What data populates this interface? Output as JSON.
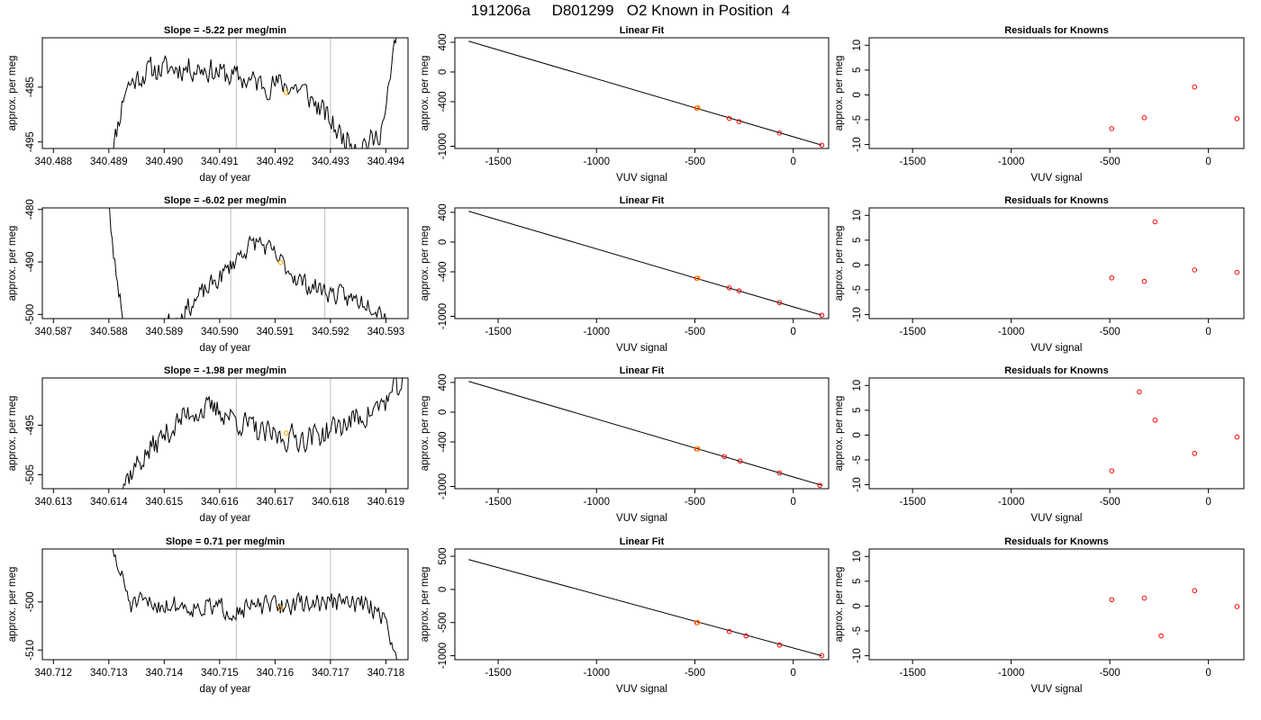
{
  "title": "191206a     D801299   O2 Known in Position  4",
  "colors": {
    "trace": "#000000",
    "known_point": "#FFA500",
    "residual": "#FF0000",
    "vline": "#BEBEBE",
    "fit_line": "#000000"
  },
  "chart_data": [
    {
      "type": "line",
      "panel": "timeseries",
      "row": 1,
      "title": "Slope =  -5.22  per meg/min",
      "xlabel": "day of year",
      "ylabel": "approx. per meg",
      "xlim": [
        340.4878,
        340.4944
      ],
      "ylim": [
        -496.2,
        -476.0
      ],
      "xticks": [
        "340.488",
        "340.489",
        "340.490",
        "340.491",
        "340.492",
        "340.493",
        "340.494"
      ],
      "xtick_values": [
        340.488,
        340.489,
        340.49,
        340.491,
        340.492,
        340.493,
        340.494
      ],
      "yticks": [
        "-485",
        "-495"
      ],
      "ytick_values": [
        -485,
        -495
      ],
      "vlines": [
        340.4913,
        340.493
      ],
      "known_point": {
        "x": 340.4922,
        "y": -486.0
      },
      "trace": {
        "seed": 11,
        "plateau": -482.0,
        "noise": 1.3,
        "shape": [
          [
            340.489,
            -500
          ],
          [
            340.4893,
            -485
          ],
          [
            340.4897,
            -482
          ],
          [
            340.4902,
            -481.5
          ],
          [
            340.4907,
            -481.5
          ],
          [
            340.4912,
            -483
          ],
          [
            340.4918,
            -484.5
          ],
          [
            340.4922,
            -484.5
          ],
          [
            340.4925,
            -485.5
          ],
          [
            340.4929,
            -490
          ],
          [
            340.4932,
            -494
          ],
          [
            340.4935,
            -495
          ],
          [
            340.4938,
            -495
          ],
          [
            340.494,
            -490
          ],
          [
            340.4942,
            -474
          ]
        ]
      }
    },
    {
      "type": "scatter",
      "panel": "linear_fit",
      "row": 1,
      "title": "Linear Fit",
      "xlabel": "VUV signal",
      "ylabel": "approx. per meg",
      "xlim": [
        -1720,
        180
      ],
      "ylim": [
        -1030,
        460
      ],
      "xticks": [
        "-1500",
        "-1000",
        "-500",
        "0"
      ],
      "xtick_values": [
        -1500,
        -1000,
        -500,
        0
      ],
      "yticks": [
        "400",
        "0",
        "-400",
        "-1000"
      ],
      "ytick_values": [
        400,
        0,
        -400,
        -1000
      ],
      "fit_line": {
        "x": [
          -1650,
          145
        ],
        "y": [
          415,
          -985
        ]
      },
      "points": {
        "x": [
          -490,
          -325,
          -275,
          -70,
          145
        ],
        "y": [
          -486,
          -625,
          -668,
          -822,
          -985
        ]
      },
      "known_point": {
        "x": -485,
        "y": -484
      }
    },
    {
      "type": "scatter",
      "panel": "residuals",
      "row": 1,
      "title": "Residuals for Knowns",
      "xlabel": "VUV signal",
      "ylabel": "approx. per meg",
      "xlim": [
        -1720,
        180
      ],
      "ylim": [
        -10.8,
        11.5
      ],
      "xticks": [
        "-1500",
        "-1000",
        "-500",
        "0"
      ],
      "xtick_values": [
        -1500,
        -1000,
        -500,
        0
      ],
      "yticks": [
        "10",
        "5",
        "0",
        "-5",
        "-10"
      ],
      "ytick_values": [
        10,
        5,
        0,
        -5,
        -10
      ],
      "points": {
        "x": [
          -490,
          -325,
          -70,
          145
        ],
        "y": [
          -6.8,
          -4.6,
          1.6,
          -4.8
        ]
      }
    },
    {
      "type": "line",
      "panel": "timeseries",
      "row": 2,
      "title": "Slope =  -6.02  per meg/min",
      "xlabel": "day of year",
      "ylabel": "approx. per meg",
      "xlim": [
        340.5868,
        340.5934
      ],
      "ylim": [
        -500.8,
        -479.7
      ],
      "xticks": [
        "340.587",
        "340.588",
        "340.589",
        "340.590",
        "340.591",
        "340.592",
        "340.593"
      ],
      "xtick_values": [
        340.587,
        340.588,
        340.589,
        340.59,
        340.591,
        340.592,
        340.593
      ],
      "yticks": [
        "-480",
        "-490",
        "-500"
      ],
      "ytick_values": [
        -480,
        -490,
        -500
      ],
      "vlines": [
        340.5902,
        340.5919
      ],
      "known_point": {
        "x": 340.5911,
        "y": -490.1
      },
      "trace": {
        "seed": 23,
        "plateau": -488.0,
        "noise": 1.1,
        "shape": [
          [
            340.5879,
            -470
          ],
          [
            340.5881,
            -490
          ],
          [
            340.5883,
            -503
          ],
          [
            340.5887,
            -504
          ],
          [
            340.5893,
            -500
          ],
          [
            340.5897,
            -496
          ],
          [
            340.5901,
            -492
          ],
          [
            340.5904,
            -488
          ],
          [
            340.5907,
            -486
          ],
          [
            340.5911,
            -490
          ],
          [
            340.5915,
            -494
          ],
          [
            340.5919,
            -495.5
          ],
          [
            340.5923,
            -497
          ],
          [
            340.5927,
            -497.5
          ],
          [
            340.593,
            -500
          ]
        ]
      }
    },
    {
      "type": "scatter",
      "panel": "linear_fit",
      "row": 2,
      "title": "Linear Fit",
      "xlabel": "VUV signal",
      "ylabel": "approx. per meg",
      "xlim": [
        -1720,
        180
      ],
      "ylim": [
        -1030,
        460
      ],
      "xticks": [
        "-1500",
        "-1000",
        "-500",
        "0"
      ],
      "xtick_values": [
        -1500,
        -1000,
        -500,
        0
      ],
      "yticks": [
        "400",
        "0",
        "-400",
        "-1000"
      ],
      "ytick_values": [
        400,
        0,
        -400,
        -1000
      ],
      "fit_line": {
        "x": [
          -1650,
          145
        ],
        "y": [
          415,
          -985
        ]
      },
      "points": {
        "x": [
          -490,
          -325,
          -275,
          -70,
          145
        ],
        "y": [
          -488,
          -617,
          -656,
          -815,
          -985
        ]
      },
      "known_point": {
        "x": -485,
        "y": -486
      }
    },
    {
      "type": "scatter",
      "panel": "residuals",
      "row": 2,
      "title": "Residuals for Knowns",
      "xlabel": "VUV signal",
      "ylabel": "approx. per meg",
      "xlim": [
        -1720,
        180
      ],
      "ylim": [
        -10.8,
        11.5
      ],
      "xticks": [
        "-1500",
        "-1000",
        "-500",
        "0"
      ],
      "xtick_values": [
        -1500,
        -1000,
        -500,
        0
      ],
      "yticks": [
        "10",
        "5",
        "0",
        "-5",
        "-10"
      ],
      "ytick_values": [
        10,
        5,
        0,
        -5,
        -10
      ],
      "points": {
        "x": [
          -490,
          -325,
          -270,
          -70,
          145
        ],
        "y": [
          -2.6,
          -3.3,
          8.7,
          -1.0,
          -1.5
        ]
      }
    },
    {
      "type": "line",
      "panel": "timeseries",
      "row": 3,
      "title": "Slope =  -1.98  per meg/min",
      "xlabel": "day of year",
      "ylabel": "approx. per meg",
      "xlim": [
        340.6128,
        340.6194
      ],
      "ylim": [
        -507.8,
        -485.5
      ],
      "xticks": [
        "340.613",
        "340.614",
        "340.615",
        "340.616",
        "340.617",
        "340.618",
        "340.619"
      ],
      "xtick_values": [
        340.613,
        340.614,
        340.615,
        340.616,
        340.617,
        340.618,
        340.619
      ],
      "yticks": [
        "-495",
        "-505"
      ],
      "ytick_values": [
        -495,
        -505
      ],
      "vlines": [
        340.6163,
        340.618
      ],
      "known_point": {
        "x": 340.6172,
        "y": -496.6
      },
      "trace": {
        "seed": 37,
        "plateau": -494.0,
        "noise": 1.5,
        "shape": [
          [
            340.6141,
            -509
          ],
          [
            340.6145,
            -503
          ],
          [
            340.615,
            -497
          ],
          [
            340.6155,
            -492
          ],
          [
            340.616,
            -492
          ],
          [
            340.6164,
            -494.5
          ],
          [
            340.6168,
            -497
          ],
          [
            340.6172,
            -497.5
          ],
          [
            340.6176,
            -497.5
          ],
          [
            340.618,
            -496
          ],
          [
            340.6184,
            -494
          ],
          [
            340.6188,
            -492
          ],
          [
            340.6191,
            -489
          ],
          [
            340.6194,
            -485
          ]
        ]
      }
    },
    {
      "type": "scatter",
      "panel": "linear_fit",
      "row": 3,
      "title": "Linear Fit",
      "xlabel": "VUV signal",
      "ylabel": "approx. per meg",
      "xlim": [
        -1720,
        180
      ],
      "ylim": [
        -1030,
        460
      ],
      "xticks": [
        "-1500",
        "-1000",
        "-500",
        "0"
      ],
      "xtick_values": [
        -1500,
        -1000,
        -500,
        0
      ],
      "yticks": [
        "400",
        "0",
        "-400",
        "-1000"
      ],
      "ytick_values": [
        400,
        0,
        -400,
        -1000
      ],
      "fit_line": {
        "x": [
          -1650,
          145
        ],
        "y": [
          415,
          -985
        ]
      },
      "points": {
        "x": [
          -490,
          -350,
          -270,
          -70,
          135
        ],
        "y": [
          -495,
          -598,
          -658,
          -818,
          -985
        ]
      },
      "known_point": {
        "x": -485,
        "y": -494
      }
    },
    {
      "type": "scatter",
      "panel": "residuals",
      "row": 3,
      "title": "Residuals for Knowns",
      "xlabel": "VUV signal",
      "ylabel": "approx. per meg",
      "xlim": [
        -1720,
        180
      ],
      "ylim": [
        -10.8,
        11.5
      ],
      "xticks": [
        "-1500",
        "-1000",
        "-500",
        "0"
      ],
      "xtick_values": [
        -1500,
        -1000,
        -500,
        0
      ],
      "yticks": [
        "10",
        "5",
        "0",
        "-5",
        "-10"
      ],
      "ytick_values": [
        10,
        5,
        0,
        -5,
        -10
      ],
      "points": {
        "x": [
          -490,
          -350,
          -270,
          -70,
          145
        ],
        "y": [
          -7.2,
          8.7,
          3.0,
          -3.7,
          -0.4
        ]
      }
    },
    {
      "type": "line",
      "panel": "timeseries",
      "row": 4,
      "title": "Slope =  0.71  per meg/min",
      "xlabel": "day of year",
      "ylabel": "approx. per meg",
      "xlim": [
        340.7118,
        340.7184
      ],
      "ylim": [
        -512.0,
        -489.0
      ],
      "xticks": [
        "340.712",
        "340.713",
        "340.714",
        "340.715",
        "340.716",
        "340.717",
        "340.718"
      ],
      "xtick_values": [
        340.712,
        340.713,
        340.714,
        340.715,
        340.716,
        340.717,
        340.718
      ],
      "yticks": [
        "-500",
        "-510"
      ],
      "ytick_values": [
        -500,
        -510
      ],
      "vlines": [
        340.7153,
        340.717
      ],
      "known_point": {
        "x": 340.7161,
        "y": -501.2
      },
      "trace": {
        "seed": 51,
        "plateau": -501.0,
        "noise": 1.2,
        "shape": [
          [
            340.713,
            -487
          ],
          [
            340.7132,
            -494
          ],
          [
            340.7134,
            -500.5
          ],
          [
            340.714,
            -500.5
          ],
          [
            340.7146,
            -501
          ],
          [
            340.7152,
            -501.5
          ],
          [
            340.7158,
            -501
          ],
          [
            340.7164,
            -500.5
          ],
          [
            340.717,
            -500
          ],
          [
            340.7176,
            -500.5
          ],
          [
            340.7179,
            -502
          ],
          [
            340.7181,
            -507
          ],
          [
            340.7182,
            -514
          ]
        ]
      }
    },
    {
      "type": "scatter",
      "panel": "linear_fit",
      "row": 4,
      "title": "Linear Fit",
      "xlabel": "VUV signal",
      "ylabel": "approx. per meg",
      "xlim": [
        -1720,
        180
      ],
      "ylim": [
        -1060,
        610
      ],
      "xticks": [
        "-1500",
        "-1000",
        "-500",
        "0"
      ],
      "xtick_values": [
        -1500,
        -1000,
        -500,
        0
      ],
      "yticks": [
        "500",
        "0",
        "-500",
        "-1000"
      ],
      "ytick_values": [
        500,
        0,
        -500,
        -1000
      ],
      "fit_line": {
        "x": [
          -1650,
          145
        ],
        "y": [
          450,
          -1000
        ]
      },
      "points": {
        "x": [
          -490,
          -325,
          -240,
          -70,
          145
        ],
        "y": [
          -502,
          -635,
          -700,
          -839,
          -1000
        ]
      },
      "known_point": {
        "x": -485,
        "y": -499
      }
    },
    {
      "type": "scatter",
      "panel": "residuals",
      "row": 4,
      "title": "Residuals for Knowns",
      "xlabel": "VUV signal",
      "ylabel": "approx. per meg",
      "xlim": [
        -1720,
        180
      ],
      "ylim": [
        -10.8,
        11.5
      ],
      "xticks": [
        "-1500",
        "-1000",
        "-500",
        "0"
      ],
      "xtick_values": [
        -1500,
        -1000,
        -500,
        0
      ],
      "yticks": [
        "10",
        "5",
        "0",
        "-5",
        "-10"
      ],
      "ytick_values": [
        10,
        5,
        0,
        -5,
        -10
      ],
      "points": {
        "x": [
          -490,
          -325,
          -240,
          -70,
          145
        ],
        "y": [
          1.3,
          1.6,
          -6.0,
          3.1,
          -0.1
        ]
      }
    }
  ]
}
